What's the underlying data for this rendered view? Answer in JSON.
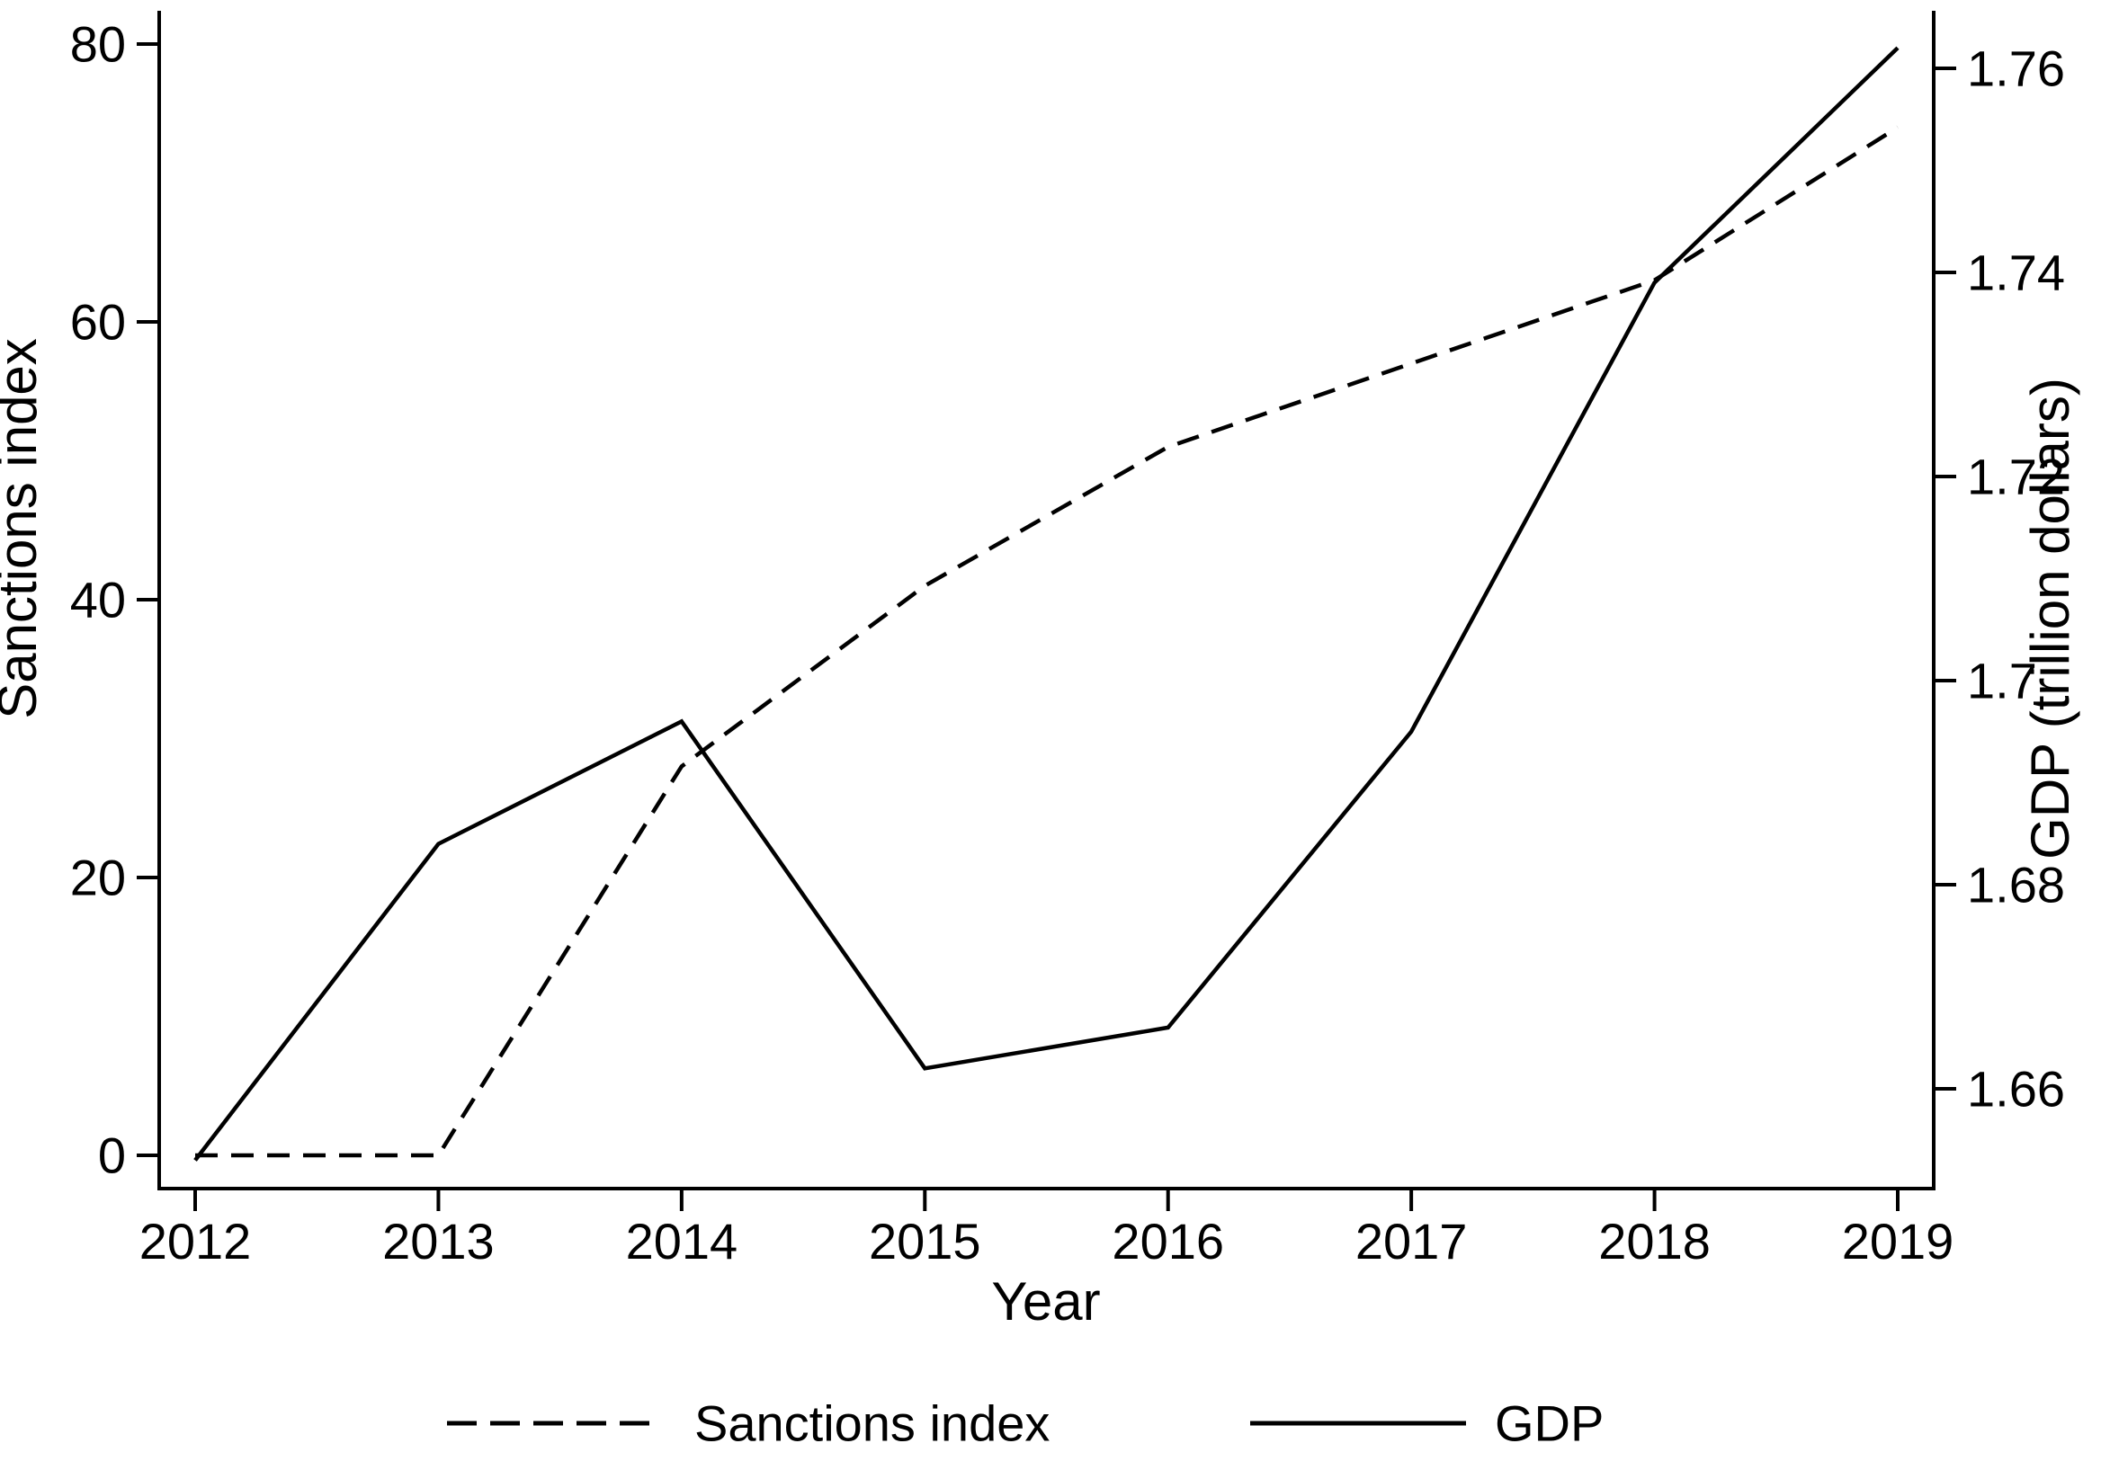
{
  "chart_data": {
    "type": "line",
    "title": "",
    "xlabel": "Year",
    "ylabel_left": "Sanctions index",
    "ylabel_right": "GDP (trillion dollars)",
    "x": [
      2012,
      2013,
      2014,
      2015,
      2016,
      2017,
      2018,
      2019
    ],
    "x_tick_labels": [
      "2012",
      "2013",
      "2014",
      "2015",
      "2016",
      "2017",
      "2018",
      "2019"
    ],
    "left_axis": {
      "tick_values": [
        0,
        20,
        40,
        60,
        80
      ],
      "tick_labels": [
        "0",
        "20",
        "40",
        "60",
        "80"
      ],
      "range": [
        -2.4,
        82.4
      ]
    },
    "right_axis": {
      "tick_values": [
        1.66,
        1.68,
        1.7,
        1.72,
        1.74,
        1.76
      ],
      "tick_labels": [
        "1.66",
        "1.68",
        "1.7",
        "1.72",
        "1.74",
        "1.76"
      ],
      "range": [
        1.65,
        1.766
      ]
    },
    "series": [
      {
        "name": "Sanctions index",
        "axis": "left",
        "style": "dashed",
        "color": "#000000",
        "values": [
          0,
          0,
          28,
          41,
          51,
          57,
          63,
          74
        ]
      },
      {
        "name": "GDP",
        "axis": "right",
        "style": "solid",
        "color": "#000000",
        "values": [
          1.653,
          1.684,
          1.696,
          1.662,
          1.666,
          1.695,
          1.739,
          1.762
        ]
      }
    ],
    "legend_position": "bottom",
    "grid": false
  }
}
